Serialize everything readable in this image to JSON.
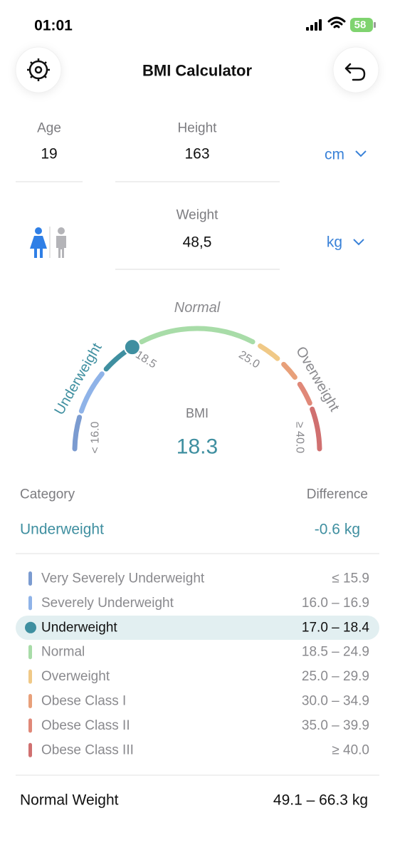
{
  "status_bar": {
    "time": "01:01",
    "battery": "58"
  },
  "header": {
    "title": "BMI Calculator"
  },
  "inputs": {
    "age": {
      "label": "Age",
      "value": "19"
    },
    "height": {
      "label": "Height",
      "value": "163",
      "unit": "cm"
    },
    "weight": {
      "label": "Weight",
      "value": "48,5",
      "unit": "kg"
    }
  },
  "gauge": {
    "labels": {
      "normal": "Normal",
      "underweight": "Underweight",
      "overweight": "Overweight"
    },
    "ticks": [
      "18.5",
      "25.0",
      "< 16.0",
      "≥ 40.0"
    ],
    "title": "BMI",
    "value": "18.3"
  },
  "result": {
    "category_label": "Category",
    "difference_label": "Difference",
    "category": "Underweight",
    "difference": "-0.6 kg"
  },
  "table": {
    "rows": [
      [
        "Very Severely Underweight",
        "≤ 15.9"
      ],
      [
        "Severely Underweight",
        "16.0 – 16.9"
      ],
      [
        "Underweight",
        "17.0 – 18.4"
      ],
      [
        "Normal",
        "18.5 – 24.9"
      ],
      [
        "Overweight",
        "25.0 – 29.9"
      ],
      [
        "Obese Class I",
        "30.0 – 34.9"
      ],
      [
        "Obese Class II",
        "35.0 – 39.9"
      ],
      [
        "Obese Class III",
        "≥ 40.0"
      ]
    ]
  },
  "footer": {
    "label": "Normal Weight",
    "value": "49.1 – 66.3 kg"
  }
}
